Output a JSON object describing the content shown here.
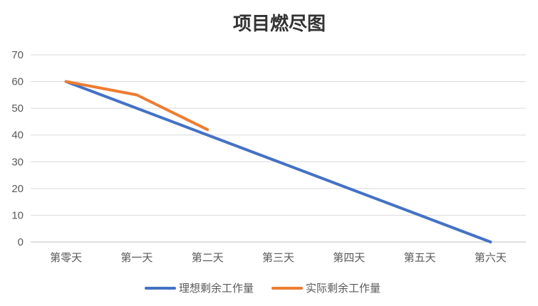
{
  "chart_data": {
    "type": "line",
    "title": "项目燃尽图",
    "xlabel": "",
    "ylabel": "",
    "categories": [
      "第零天",
      "第一天",
      "第二天",
      "第三天",
      "第四天",
      "第五天",
      "第六天"
    ],
    "ylim": [
      0,
      70
    ],
    "yticks": [
      "0",
      "10",
      "20",
      "30",
      "40",
      "50",
      "60",
      "70"
    ],
    "grid": true,
    "legend_position": "bottom",
    "series": [
      {
        "name": "理想剩余工作量",
        "color": "#4472C4",
        "values": [
          60,
          50,
          40,
          30,
          20,
          10,
          0
        ]
      },
      {
        "name": "实际剩余工作量",
        "color": "#ED7D31",
        "values": [
          60,
          55,
          42,
          null,
          null,
          null,
          null
        ]
      }
    ]
  }
}
